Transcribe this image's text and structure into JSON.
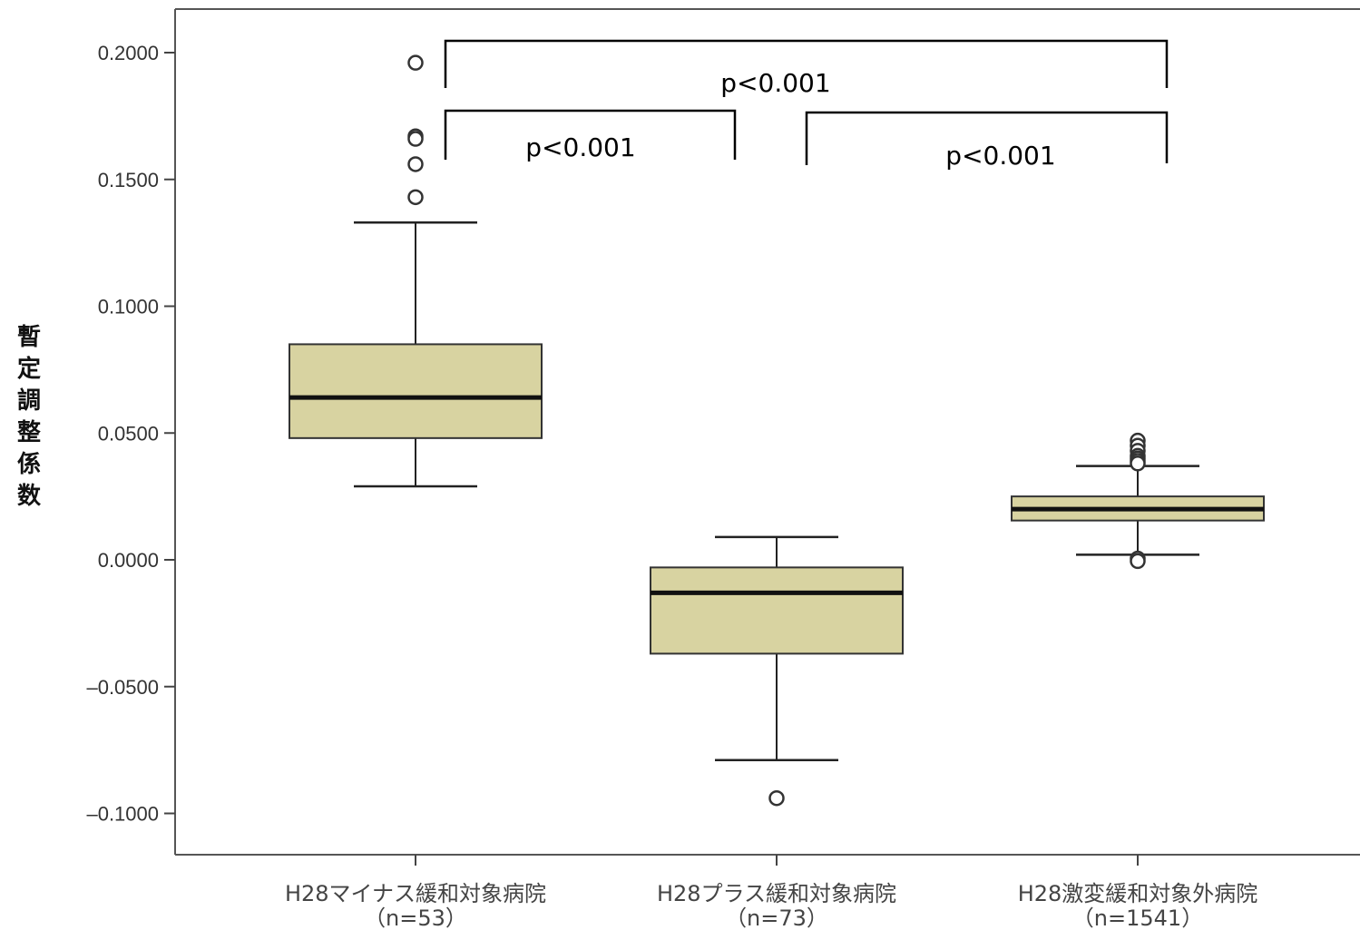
{
  "chart_data": {
    "type": "box",
    "title": "",
    "ylabel": "暫定調整係数",
    "xlabel": "",
    "ylim": [
      -0.115,
      0.215
    ],
    "yticks": [
      0.2,
      0.15,
      0.1,
      0.05,
      0.0,
      -0.05,
      -0.1
    ],
    "ytick_labels": [
      "0.2000",
      "0.1500",
      "0.1000",
      "0.0500",
      "0.0000",
      "–0.0500",
      "–0.1000"
    ],
    "box_color": "#d8d3a1",
    "groups": [
      {
        "label": "H28マイナス緩和対象病院",
        "n_label": "（n=53）",
        "whisker_low": 0.029,
        "q1": 0.048,
        "median": 0.064,
        "q3": 0.085,
        "whisker_high": 0.133,
        "outliers": [
          0.196,
          0.167,
          0.166,
          0.156,
          0.143
        ]
      },
      {
        "label": "H28プラス緩和対象病院",
        "n_label": "（n=73）",
        "whisker_low": -0.079,
        "q1": -0.037,
        "median": -0.013,
        "q3": -0.003,
        "whisker_high": 0.009,
        "outliers": [
          -0.094
        ]
      },
      {
        "label": "H28激変緩和対象外病院",
        "n_label": "（n=1541）",
        "whisker_low": 0.002,
        "q1": 0.0155,
        "median": 0.02,
        "q3": 0.025,
        "whisker_high": 0.037,
        "outliers": [
          0.047,
          0.045,
          0.043,
          0.041,
          0.04,
          0.039,
          0.038,
          0.0005,
          -0.0005
        ]
      }
    ],
    "comparisons": [
      {
        "from": 0,
        "to": 2,
        "label": "p<0.001"
      },
      {
        "from": 0,
        "to": 1,
        "label": "p<0.001"
      },
      {
        "from": 1,
        "to": 2,
        "label": "p<0.001"
      }
    ]
  }
}
